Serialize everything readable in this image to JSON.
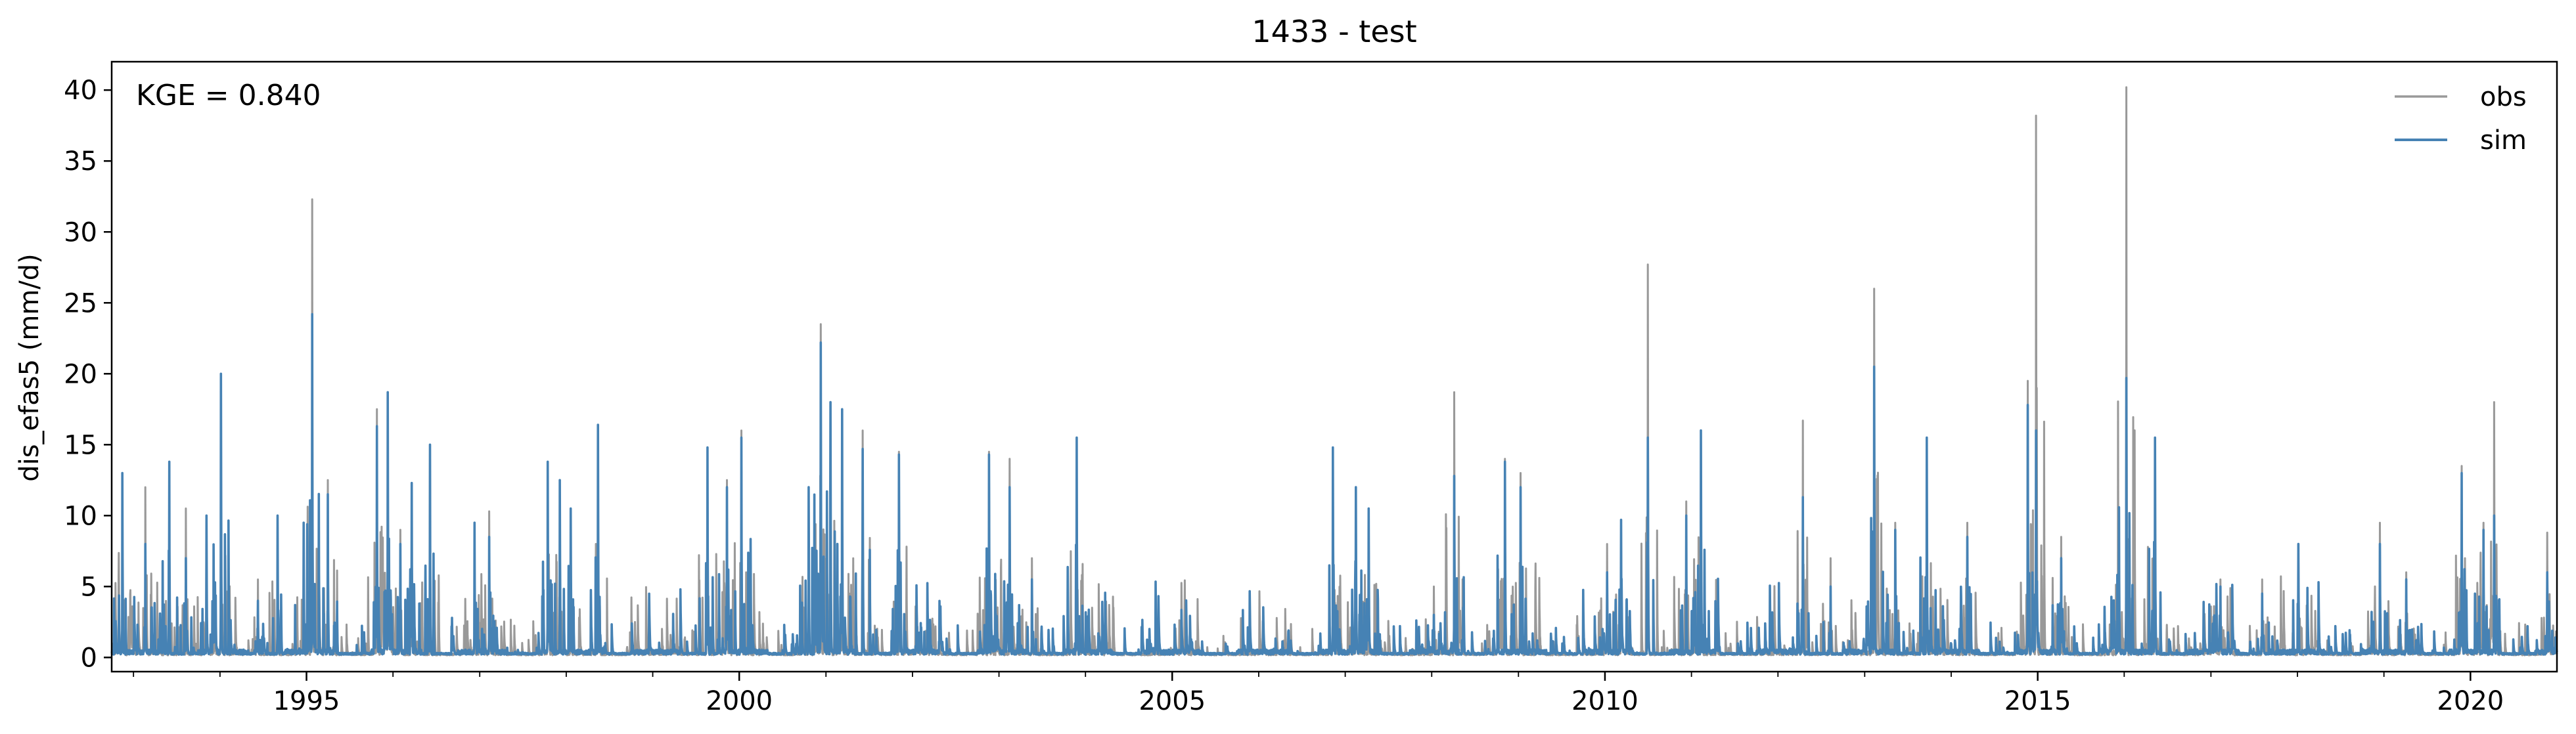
{
  "chart_data": {
    "type": "line",
    "title": "1433 - test",
    "xlabel": "",
    "ylabel": "dis_efas5 (mm/d)",
    "annotation": "KGE = 0.840",
    "legend_position": "top-right",
    "grid": false,
    "xlim": [
      "1992-10-01",
      "2020-12-31"
    ],
    "ylim": [
      -1,
      42
    ],
    "x_ticks": [
      "1995",
      "2000",
      "2005",
      "2010",
      "2015",
      "2020"
    ],
    "y_ticks": [
      "0",
      "5",
      "10",
      "15",
      "20",
      "25",
      "30",
      "35",
      "40"
    ],
    "x_tick_years": [
      1995,
      2000,
      2005,
      2010,
      2015,
      2020
    ],
    "y_tick_values": [
      0,
      5,
      10,
      15,
      20,
      25,
      30,
      35,
      40
    ],
    "series": [
      {
        "name": "obs",
        "color": "#999999",
        "peaks": [
          [
            "1992-11-15",
            12.5
          ],
          [
            "1993-02-20",
            12.0
          ],
          [
            "1993-06-01",
            7.5
          ],
          [
            "1993-08-10",
            10.5
          ],
          [
            "1993-11-05",
            10.0
          ],
          [
            "1994-01-05",
            16.0
          ],
          [
            "1994-06-10",
            5.5
          ],
          [
            "1994-09-01",
            10.0
          ],
          [
            "1994-12-20",
            9.0
          ],
          [
            "1995-01-25",
            32.3
          ],
          [
            "1995-04-01",
            12.5
          ],
          [
            "1995-10-25",
            17.5
          ],
          [
            "1995-12-10",
            18.5
          ],
          [
            "1996-02-01",
            9.0
          ],
          [
            "1996-03-20",
            12.0
          ],
          [
            "1996-06-05",
            14.5
          ],
          [
            "1996-12-10",
            9.5
          ],
          [
            "1997-02-10",
            10.3
          ],
          [
            "1997-10-15",
            13.5
          ],
          [
            "1997-12-05",
            11.5
          ],
          [
            "1998-01-20",
            10.0
          ],
          [
            "1998-05-15",
            16.0
          ],
          [
            "1999-08-20",
            14.5
          ],
          [
            "1999-11-10",
            12.5
          ],
          [
            "2000-01-10",
            16.0
          ],
          [
            "2000-10-20",
            12.0
          ],
          [
            "2000-12-10",
            23.5
          ],
          [
            "2001-01-20",
            18.0
          ],
          [
            "2001-03-10",
            17.0
          ],
          [
            "2001-06-05",
            16.0
          ],
          [
            "2001-11-05",
            14.5
          ],
          [
            "2002-03-05",
            5.0
          ],
          [
            "2002-11-20",
            14.5
          ],
          [
            "2003-02-15",
            14.0
          ],
          [
            "2003-05-20",
            7.0
          ],
          [
            "2003-11-25",
            15.5
          ],
          [
            "2006-11-10",
            14.8
          ],
          [
            "2007-02-15",
            11.5
          ],
          [
            "2007-04-10",
            10.5
          ],
          [
            "2008-01-10",
            5.0
          ],
          [
            "2008-04-05",
            18.7
          ],
          [
            "2008-11-05",
            14.0
          ],
          [
            "2009-01-10",
            13.0
          ],
          [
            "2010-01-10",
            8.0
          ],
          [
            "2010-03-10",
            9.5
          ],
          [
            "2010-07-01",
            27.7
          ],
          [
            "2010-12-10",
            11.0
          ],
          [
            "2011-02-10",
            16.0
          ],
          [
            "2012-04-15",
            16.7
          ],
          [
            "2012-08-10",
            7.0
          ],
          [
            "2013-02-10",
            26.0
          ],
          [
            "2013-05-10",
            9.5
          ],
          [
            "2013-09-20",
            15.5
          ],
          [
            "2014-03-10",
            9.5
          ],
          [
            "2014-11-20",
            19.5
          ],
          [
            "2014-12-25",
            38.2
          ],
          [
            "2015-04-10",
            8.5
          ],
          [
            "2016-01-10",
            40.2
          ],
          [
            "2016-05-10",
            15.5
          ],
          [
            "2017-02-10",
            5.5
          ],
          [
            "2017-08-05",
            5.5
          ],
          [
            "2018-01-05",
            8.0
          ],
          [
            "2018-12-15",
            9.5
          ],
          [
            "2019-04-05",
            6.0
          ],
          [
            "2019-11-25",
            13.5
          ],
          [
            "2020-02-25",
            9.5
          ],
          [
            "2020-04-10",
            18.0
          ],
          [
            "2020-11-20",
            8.8
          ]
        ]
      },
      {
        "name": "sim",
        "color": "#4682b4",
        "peaks": [
          [
            "1992-11-15",
            13.0
          ],
          [
            "1993-02-20",
            8.0
          ],
          [
            "1993-06-01",
            13.8
          ],
          [
            "1993-08-10",
            7.0
          ],
          [
            "1993-11-05",
            10.0
          ],
          [
            "1994-01-05",
            20.0
          ],
          [
            "1994-06-10",
            4.0
          ],
          [
            "1994-09-01",
            10.0
          ],
          [
            "1994-12-20",
            9.5
          ],
          [
            "1995-01-25",
            24.2
          ],
          [
            "1995-04-01",
            11.5
          ],
          [
            "1995-10-25",
            16.3
          ],
          [
            "1995-12-10",
            18.7
          ],
          [
            "1996-02-01",
            8.0
          ],
          [
            "1996-03-20",
            12.3
          ],
          [
            "1996-06-05",
            15.0
          ],
          [
            "1996-12-10",
            9.5
          ],
          [
            "1997-02-10",
            8.5
          ],
          [
            "1997-10-15",
            13.8
          ],
          [
            "1997-12-05",
            12.5
          ],
          [
            "1998-01-20",
            10.5
          ],
          [
            "1998-05-15",
            16.4
          ],
          [
            "1999-08-20",
            14.8
          ],
          [
            "1999-11-10",
            12.0
          ],
          [
            "2000-01-10",
            15.5
          ],
          [
            "2000-10-20",
            12.0
          ],
          [
            "2000-12-10",
            22.2
          ],
          [
            "2001-01-20",
            18.0
          ],
          [
            "2001-03-10",
            17.5
          ],
          [
            "2001-06-05",
            14.7
          ],
          [
            "2001-11-05",
            14.3
          ],
          [
            "2002-03-05",
            4.5
          ],
          [
            "2002-11-20",
            14.3
          ],
          [
            "2003-02-15",
            12.0
          ],
          [
            "2003-05-20",
            5.5
          ],
          [
            "2003-11-25",
            15.5
          ],
          [
            "2006-11-10",
            14.8
          ],
          [
            "2007-02-15",
            12.0
          ],
          [
            "2007-04-10",
            10.5
          ],
          [
            "2008-01-10",
            3.0
          ],
          [
            "2008-04-05",
            12.8
          ],
          [
            "2008-11-05",
            13.8
          ],
          [
            "2009-01-10",
            12.0
          ],
          [
            "2010-01-10",
            6.0
          ],
          [
            "2010-03-10",
            9.7
          ],
          [
            "2010-07-01",
            15.5
          ],
          [
            "2010-12-10",
            10.0
          ],
          [
            "2011-02-10",
            16.0
          ],
          [
            "2012-04-15",
            11.3
          ],
          [
            "2012-08-10",
            5.0
          ],
          [
            "2013-02-10",
            20.5
          ],
          [
            "2013-05-10",
            9.0
          ],
          [
            "2013-09-20",
            15.5
          ],
          [
            "2014-03-10",
            8.5
          ],
          [
            "2014-11-20",
            17.8
          ],
          [
            "2014-12-25",
            16.0
          ],
          [
            "2015-04-10",
            7.0
          ],
          [
            "2016-01-10",
            19.7
          ],
          [
            "2016-05-10",
            15.5
          ],
          [
            "2017-02-10",
            5.0
          ],
          [
            "2017-08-05",
            4.5
          ],
          [
            "2018-01-05",
            8.0
          ],
          [
            "2018-12-15",
            8.0
          ],
          [
            "2019-04-05",
            5.5
          ],
          [
            "2019-11-25",
            13.0
          ],
          [
            "2020-02-25",
            9.0
          ],
          [
            "2020-04-10",
            10.0
          ],
          [
            "2020-11-20",
            6.0
          ]
        ]
      }
    ]
  }
}
